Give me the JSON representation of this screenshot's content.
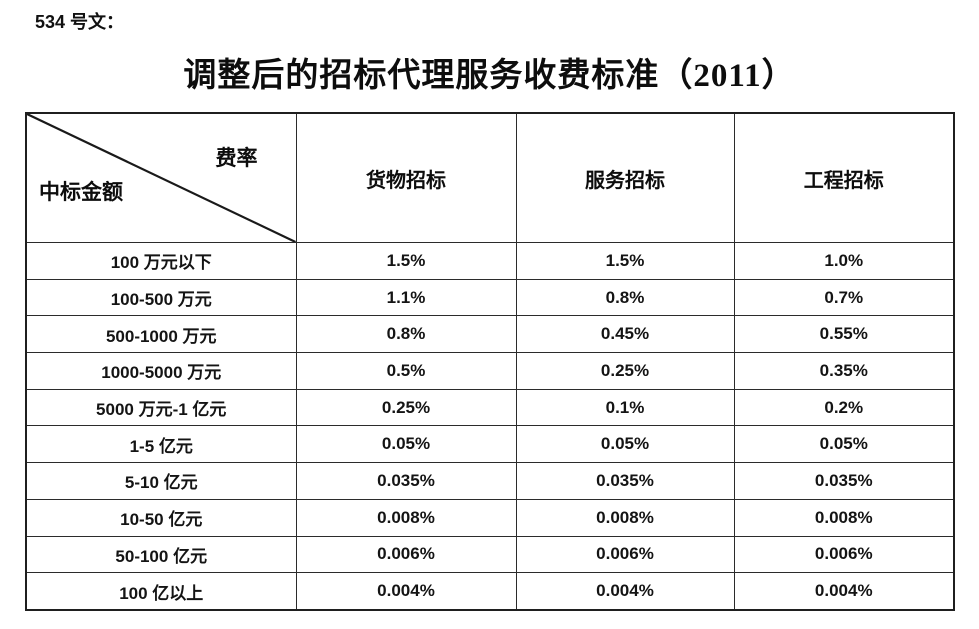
{
  "doc": {
    "ref_label": "534 号文：",
    "title": "调整后的招标代理服务收费标准（2011）"
  },
  "table": {
    "corner": {
      "top_right": "费率",
      "bottom_left": "中标金额"
    },
    "columns": [
      "货物招标",
      "服务招标",
      "工程招标"
    ],
    "rows": [
      {
        "label": "100 万元以下",
        "values": [
          "1.5%",
          "1.5%",
          "1.0%"
        ]
      },
      {
        "label": "100-500 万元",
        "values": [
          "1.1%",
          "0.8%",
          "0.7%"
        ]
      },
      {
        "label": "500-1000 万元",
        "values": [
          "0.8%",
          "0.45%",
          "0.55%"
        ]
      },
      {
        "label": "1000-5000 万元",
        "values": [
          "0.5%",
          "0.25%",
          "0.35%"
        ]
      },
      {
        "label": "5000 万元-1 亿元",
        "values": [
          "0.25%",
          "0.1%",
          "0.2%"
        ]
      },
      {
        "label": "1-5 亿元",
        "values": [
          "0.05%",
          "0.05%",
          "0.05%"
        ]
      },
      {
        "label": "5-10 亿元",
        "values": [
          "0.035%",
          "0.035%",
          "0.035%"
        ]
      },
      {
        "label": "10-50 亿元",
        "values": [
          "0.008%",
          "0.008%",
          "0.008%"
        ]
      },
      {
        "label": "50-100 亿元",
        "values": [
          "0.006%",
          "0.006%",
          "0.006%"
        ]
      },
      {
        "label": "100 亿以上",
        "values": [
          "0.004%",
          "0.004%",
          "0.004%"
        ]
      }
    ]
  },
  "colors": {
    "text": "#111111",
    "border": "#2b2b2b",
    "background": "#ffffff"
  }
}
